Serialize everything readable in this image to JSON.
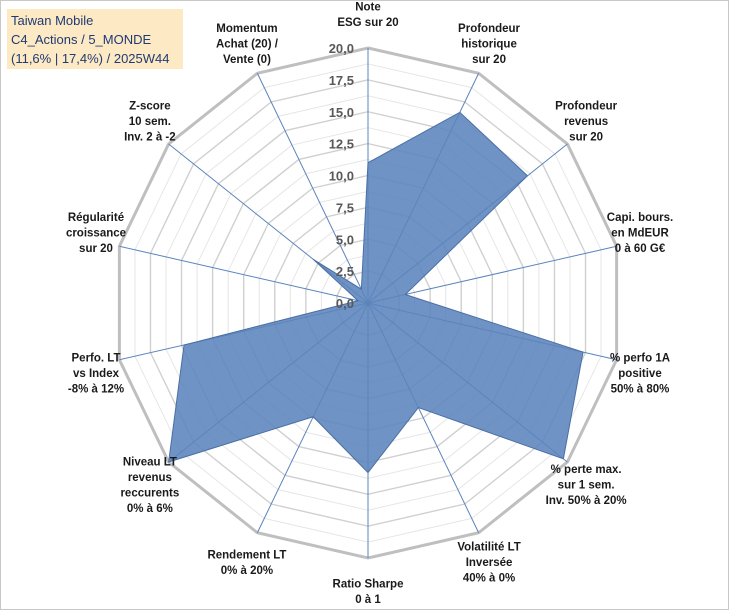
{
  "title_box": {
    "line1": "Taiwan Mobile",
    "line2": "C4_Actions / 5_MONDE",
    "line3": "(11,6% | 17,4%) / 2025W44"
  },
  "chart_data": {
    "type": "radar",
    "title": "Taiwan Mobile",
    "rmin": 0,
    "rmax": 20,
    "grid_step": 1.25,
    "tick_values": [
      0,
      2.5,
      5,
      7.5,
      10,
      12.5,
      15,
      17.5,
      20
    ],
    "tick_labels": [
      "0,0",
      "2,5",
      "5,0",
      "7,5",
      "10,0",
      "12,5",
      "15,0",
      "17,5",
      "20,0"
    ],
    "categories": [
      [
        "Note",
        "ESG sur 20"
      ],
      [
        "Profondeur",
        "historique",
        "sur 20"
      ],
      [
        "Profondeur",
        "revenus",
        "sur 20"
      ],
      [
        "Capi. bours.",
        "en MdEUR",
        "0 à 60 G€"
      ],
      [
        "% perfo 1A",
        "positive",
        "50% à 80%"
      ],
      [
        "% perte max.",
        "sur 1 sem.",
        "Inv. 50% à 20%"
      ],
      [
        "Volatilité LT",
        "Inversée",
        "40% à 0%"
      ],
      [
        "Ratio Sharpe",
        "0 à 1"
      ],
      [
        "Rendement LT",
        "0% à 20%"
      ],
      [
        "Niveau LT",
        "revenus",
        "reccurents",
        "0% à 6%"
      ],
      [
        "Perfo. LT",
        "vs Index",
        "-8% à 12%"
      ],
      [
        "Régularité",
        "croissance",
        "sur 20"
      ],
      [
        "Z-score",
        "10 sem.",
        "Inv. 2 à -2"
      ],
      [
        "Momentum",
        "Achat (20) /",
        "Vente (0)"
      ]
    ],
    "series": [
      {
        "name": "Taiwan Mobile",
        "color": "#5b84bc",
        "values": [
          11,
          16.6,
          16.0,
          3.0,
          17.3,
          19.6,
          9.1,
          13.3,
          9.9,
          20.0,
          14.8,
          0.8,
          5.5,
          1.2
        ]
      }
    ]
  }
}
